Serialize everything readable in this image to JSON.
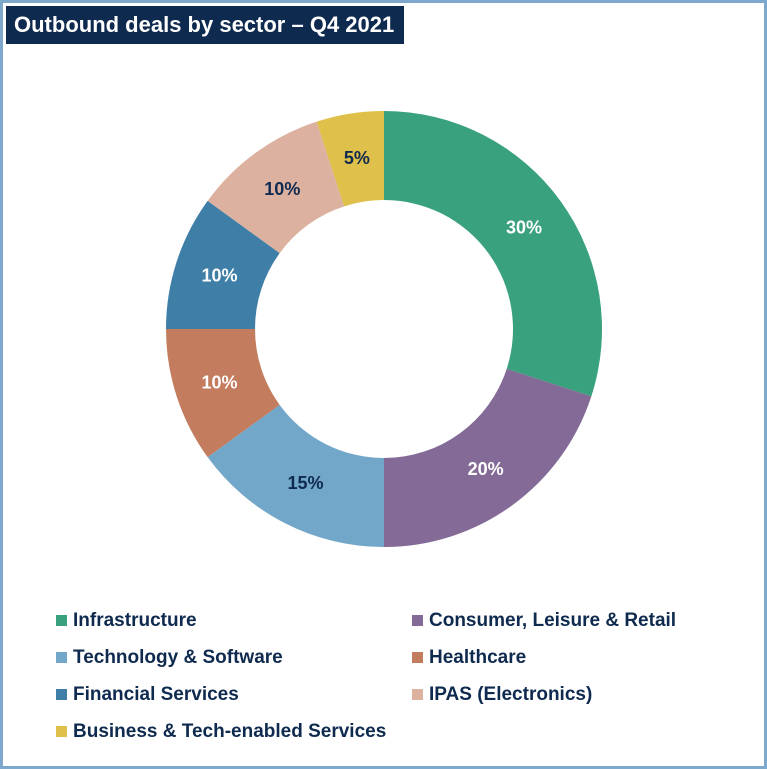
{
  "title": "Outbound deals by sector – Q4 2021",
  "chart_data": {
    "type": "pie",
    "title": "Outbound deals by sector – Q4 2021",
    "donut": true,
    "legend_position": "bottom",
    "slices": [
      {
        "name": "Infrastructure",
        "value": 30,
        "label": "30%",
        "color": "#3aa17e",
        "label_color": "#ffffff"
      },
      {
        "name": "Consumer, Leisure & Retail",
        "value": 20,
        "label": "20%",
        "color": "#846a96",
        "label_color": "#ffffff"
      },
      {
        "name": "Technology & Software",
        "value": 15,
        "label": "15%",
        "color": "#72a7c9",
        "label_color": "#0f2a4f"
      },
      {
        "name": "Healthcare",
        "value": 10,
        "label": "10%",
        "color": "#c37c5d",
        "label_color": "#ffffff"
      },
      {
        "name": "Financial Services",
        "value": 10,
        "label": "10%",
        "color": "#3e7ea7",
        "label_color": "#ffffff"
      },
      {
        "name": "IPAS (Electronics)",
        "value": 10,
        "label": "10%",
        "color": "#ddb1a0",
        "label_color": "#0f2a4f"
      },
      {
        "name": "Business & Tech-enabled Services",
        "value": 5,
        "label": "5%",
        "color": "#dec04a",
        "label_color": "#0f2a4f"
      }
    ]
  },
  "legend": {
    "items": [
      {
        "label": "Infrastructure",
        "color": "#3aa17e"
      },
      {
        "label": "Consumer, Leisure & Retail",
        "color": "#846a96"
      },
      {
        "label": "Technology & Software",
        "color": "#72a7c9"
      },
      {
        "label": "Healthcare",
        "color": "#c37c5d"
      },
      {
        "label": "Financial Services",
        "color": "#3e7ea7"
      },
      {
        "label": "IPAS (Electronics)",
        "color": "#ddb1a0"
      },
      {
        "label": "Business & Tech-enabled Services",
        "color": "#dec04a"
      }
    ]
  }
}
